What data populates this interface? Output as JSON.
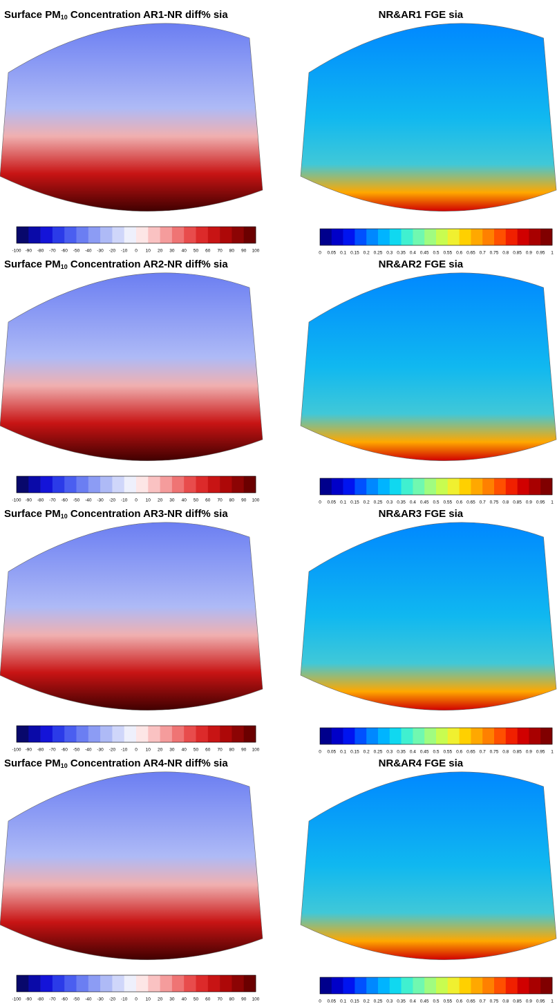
{
  "panels": [
    {
      "title": {
        "prefix": "Surface PM",
        "subscript": "10",
        "suffix": " Concentration AR1-NR diff% sia"
      },
      "colorbar": {
        "ticks": [
          -100,
          -90,
          -80,
          -70,
          -60,
          -50,
          -40,
          -30,
          -20,
          -10,
          0,
          10,
          20,
          30,
          40,
          50,
          60,
          70,
          80,
          90,
          100
        ],
        "colors": [
          "#08086b",
          "#0a0aa8",
          "#1414d8",
          "#2b3be8",
          "#4a5ef0",
          "#6b7ef2",
          "#8c9cf4",
          "#aebaf6",
          "#cfd6fa",
          "#eef0fc",
          "#fde6e6",
          "#fac2c2",
          "#f59c9c",
          "#ef7474",
          "#e84c4c",
          "#dc2a2a",
          "#c81414",
          "#ad0808",
          "#8c0404",
          "#6b0000"
        ]
      }
    },
    {
      "title": {
        "text": "NR&AR1 FGE sia"
      },
      "colorbar": {
        "ticks": [
          0,
          0.05,
          0.1,
          0.15,
          0.2,
          0.25,
          0.3,
          0.35,
          0.4,
          0.45,
          0.5,
          0.55,
          0.6,
          0.65,
          0.7,
          0.75,
          0.8,
          0.85,
          0.9,
          0.95,
          1
        ],
        "colors": [
          "#00008c",
          "#0000c8",
          "#0014f0",
          "#0050ff",
          "#0088ff",
          "#00b4ff",
          "#10d8f0",
          "#40f0d0",
          "#70f8b0",
          "#a0fc80",
          "#c8fc50",
          "#f0f030",
          "#ffd000",
          "#ffa800",
          "#ff8000",
          "#ff5000",
          "#f02000",
          "#d00000",
          "#a80000",
          "#800000"
        ]
      }
    },
    {
      "title": {
        "prefix": "Surface PM",
        "subscript": "10",
        "suffix": " Concentration AR2-NR diff% sia"
      },
      "colorbar": {
        "ticks": [
          -100,
          -90,
          -80,
          -70,
          -60,
          -50,
          -40,
          -30,
          -20,
          -10,
          0,
          10,
          20,
          30,
          40,
          50,
          60,
          70,
          80,
          90,
          100
        ],
        "colors": [
          "#08086b",
          "#0a0aa8",
          "#1414d8",
          "#2b3be8",
          "#4a5ef0",
          "#6b7ef2",
          "#8c9cf4",
          "#aebaf6",
          "#cfd6fa",
          "#eef0fc",
          "#fde6e6",
          "#fac2c2",
          "#f59c9c",
          "#ef7474",
          "#e84c4c",
          "#dc2a2a",
          "#c81414",
          "#ad0808",
          "#8c0404",
          "#6b0000"
        ]
      }
    },
    {
      "title": {
        "text": "NR&AR2 FGE sia"
      },
      "colorbar": {
        "ticks": [
          0,
          0.05,
          0.1,
          0.15,
          0.2,
          0.25,
          0.3,
          0.35,
          0.4,
          0.45,
          0.5,
          0.55,
          0.6,
          0.65,
          0.7,
          0.75,
          0.8,
          0.85,
          0.9,
          0.95,
          1
        ],
        "colors": [
          "#00008c",
          "#0000c8",
          "#0014f0",
          "#0050ff",
          "#0088ff",
          "#00b4ff",
          "#10d8f0",
          "#40f0d0",
          "#70f8b0",
          "#a0fc80",
          "#c8fc50",
          "#f0f030",
          "#ffd000",
          "#ffa800",
          "#ff8000",
          "#ff5000",
          "#f02000",
          "#d00000",
          "#a80000",
          "#800000"
        ]
      }
    },
    {
      "title": {
        "prefix": "Surface PM",
        "subscript": "10",
        "suffix": " Concentration AR3-NR diff% sia"
      },
      "colorbar": {
        "ticks": [
          -100,
          -90,
          -80,
          -70,
          -60,
          -50,
          -40,
          -30,
          -20,
          -10,
          0,
          10,
          20,
          30,
          40,
          50,
          60,
          70,
          80,
          90,
          100
        ],
        "colors": [
          "#08086b",
          "#0a0aa8",
          "#1414d8",
          "#2b3be8",
          "#4a5ef0",
          "#6b7ef2",
          "#8c9cf4",
          "#aebaf6",
          "#cfd6fa",
          "#eef0fc",
          "#fde6e6",
          "#fac2c2",
          "#f59c9c",
          "#ef7474",
          "#e84c4c",
          "#dc2a2a",
          "#c81414",
          "#ad0808",
          "#8c0404",
          "#6b0000"
        ]
      }
    },
    {
      "title": {
        "text": "NR&AR3 FGE sia"
      },
      "colorbar": {
        "ticks": [
          0,
          0.05,
          0.1,
          0.15,
          0.2,
          0.25,
          0.3,
          0.35,
          0.4,
          0.45,
          0.5,
          0.55,
          0.6,
          0.65,
          0.7,
          0.75,
          0.8,
          0.85,
          0.9,
          0.95,
          1
        ],
        "colors": [
          "#00008c",
          "#0000c8",
          "#0014f0",
          "#0050ff",
          "#0088ff",
          "#00b4ff",
          "#10d8f0",
          "#40f0d0",
          "#70f8b0",
          "#a0fc80",
          "#c8fc50",
          "#f0f030",
          "#ffd000",
          "#ffa800",
          "#ff8000",
          "#ff5000",
          "#f02000",
          "#d00000",
          "#a80000",
          "#800000"
        ]
      }
    },
    {
      "title": {
        "prefix": "Surface PM",
        "subscript": "10",
        "suffix": " Concentration AR4-NR diff% sia"
      },
      "colorbar": {
        "ticks": [
          -100,
          -90,
          -80,
          -70,
          -60,
          -50,
          -40,
          -30,
          -20,
          -10,
          0,
          10,
          20,
          30,
          40,
          50,
          60,
          70,
          80,
          90,
          100
        ],
        "colors": [
          "#08086b",
          "#0a0aa8",
          "#1414d8",
          "#2b3be8",
          "#4a5ef0",
          "#6b7ef2",
          "#8c9cf4",
          "#aebaf6",
          "#cfd6fa",
          "#eef0fc",
          "#fde6e6",
          "#fac2c2",
          "#f59c9c",
          "#ef7474",
          "#e84c4c",
          "#dc2a2a",
          "#c81414",
          "#ad0808",
          "#8c0404",
          "#6b0000"
        ]
      }
    },
    {
      "title": {
        "text": "NR&AR4 FGE sia"
      },
      "colorbar": {
        "ticks": [
          0,
          0.05,
          0.1,
          0.15,
          0.2,
          0.25,
          0.3,
          0.35,
          0.4,
          0.45,
          0.5,
          0.55,
          0.6,
          0.65,
          0.7,
          0.75,
          0.8,
          0.85,
          0.9,
          0.95,
          1
        ],
        "colors": [
          "#00008c",
          "#0000c8",
          "#0014f0",
          "#0050ff",
          "#0088ff",
          "#00b4ff",
          "#10d8f0",
          "#40f0d0",
          "#70f8b0",
          "#a0fc80",
          "#c8fc50",
          "#f0f030",
          "#ffd000",
          "#ffa800",
          "#ff8000",
          "#ff5000",
          "#f02000",
          "#d00000",
          "#a80000",
          "#800000"
        ]
      }
    }
  ]
}
